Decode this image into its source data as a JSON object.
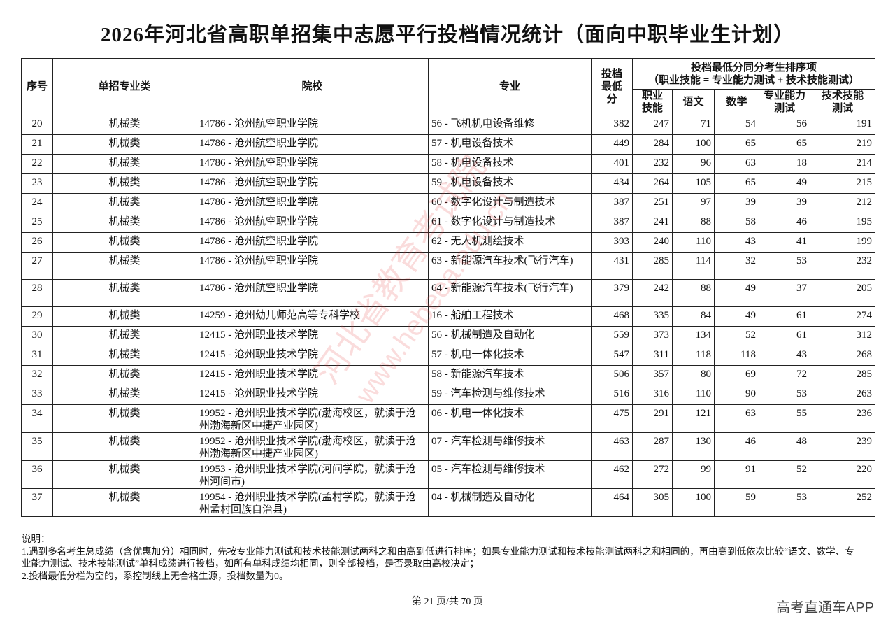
{
  "title": "2026年河北省高职单招集中志愿平行投档情况统计（面向中职毕业生计划）",
  "table": {
    "headers": {
      "seq": "序号",
      "category": "单招专业类",
      "school": "院校",
      "major": "专业",
      "min_score": "投档最低分",
      "tiebreak_group": "投档最低分同分考生排序项",
      "tiebreak_formula": "（职业技能 = 专业能力测试 + 技术技能测试）",
      "vocational": "职业技能",
      "chinese": "语文",
      "math": "数学",
      "professional": "专业能力测试",
      "technical": "技术技能测试"
    },
    "rows": [
      {
        "seq": "20",
        "category": "机械类",
        "school": "14786 - 沧州航空职业学院",
        "major": "56 - 飞机机电设备维修",
        "min": "382",
        "voc": "247",
        "chi": "71",
        "math": "54",
        "pro": "56",
        "tech": "191"
      },
      {
        "seq": "21",
        "category": "机械类",
        "school": "14786 - 沧州航空职业学院",
        "major": "57 - 机电设备技术",
        "min": "449",
        "voc": "284",
        "chi": "100",
        "math": "65",
        "pro": "65",
        "tech": "219"
      },
      {
        "seq": "22",
        "category": "机械类",
        "school": "14786 - 沧州航空职业学院",
        "major": "58 - 机电设备技术",
        "min": "401",
        "voc": "232",
        "chi": "96",
        "math": "63",
        "pro": "18",
        "tech": "214"
      },
      {
        "seq": "23",
        "category": "机械类",
        "school": "14786 - 沧州航空职业学院",
        "major": "59 - 机电设备技术",
        "min": "434",
        "voc": "264",
        "chi": "105",
        "math": "65",
        "pro": "49",
        "tech": "215"
      },
      {
        "seq": "24",
        "category": "机械类",
        "school": "14786 - 沧州航空职业学院",
        "major": "60 - 数字化设计与制造技术",
        "min": "387",
        "voc": "251",
        "chi": "97",
        "math": "39",
        "pro": "39",
        "tech": "212"
      },
      {
        "seq": "25",
        "category": "机械类",
        "school": "14786 - 沧州航空职业学院",
        "major": "61 - 数字化设计与制造技术",
        "min": "387",
        "voc": "241",
        "chi": "88",
        "math": "58",
        "pro": "46",
        "tech": "195"
      },
      {
        "seq": "26",
        "category": "机械类",
        "school": "14786 - 沧州航空职业学院",
        "major": "62 - 无人机测绘技术",
        "min": "393",
        "voc": "240",
        "chi": "110",
        "math": "43",
        "pro": "41",
        "tech": "199"
      },
      {
        "seq": "27",
        "category": "机械类",
        "school": "14786 - 沧州航空职业学院",
        "major": "63 - 新能源汽车技术(飞行汽车)",
        "min": "431",
        "voc": "285",
        "chi": "114",
        "math": "32",
        "pro": "53",
        "tech": "232"
      },
      {
        "seq": "28",
        "category": "机械类",
        "school": "14786 - 沧州航空职业学院",
        "major": "64 - 新能源汽车技术(飞行汽车)",
        "min": "379",
        "voc": "242",
        "chi": "88",
        "math": "49",
        "pro": "37",
        "tech": "205"
      },
      {
        "seq": "29",
        "category": "机械类",
        "school": "14259 - 沧州幼儿师范高等专科学校",
        "major": "16 - 船舶工程技术",
        "min": "468",
        "voc": "335",
        "chi": "84",
        "math": "49",
        "pro": "61",
        "tech": "274"
      },
      {
        "seq": "30",
        "category": "机械类",
        "school": "12415 - 沧州职业技术学院",
        "major": "56 - 机械制造及自动化",
        "min": "559",
        "voc": "373",
        "chi": "134",
        "math": "52",
        "pro": "61",
        "tech": "312"
      },
      {
        "seq": "31",
        "category": "机械类",
        "school": "12415 - 沧州职业技术学院",
        "major": "57 - 机电一体化技术",
        "min": "547",
        "voc": "311",
        "chi": "118",
        "math": "118",
        "pro": "43",
        "tech": "268"
      },
      {
        "seq": "32",
        "category": "机械类",
        "school": "12415 - 沧州职业技术学院",
        "major": "58 - 新能源汽车技术",
        "min": "506",
        "voc": "357",
        "chi": "80",
        "math": "69",
        "pro": "72",
        "tech": "285"
      },
      {
        "seq": "33",
        "category": "机械类",
        "school": "12415 - 沧州职业技术学院",
        "major": "59 - 汽车检测与维修技术",
        "min": "516",
        "voc": "316",
        "chi": "110",
        "math": "90",
        "pro": "53",
        "tech": "263"
      },
      {
        "seq": "34",
        "category": "机械类",
        "school": "19952 - 沧州职业技术学院(渤海校区，就读于沧州渤海新区中捷产业园区)",
        "major": "06 - 机电一体化技术",
        "min": "475",
        "voc": "291",
        "chi": "121",
        "math": "63",
        "pro": "55",
        "tech": "236"
      },
      {
        "seq": "35",
        "category": "机械类",
        "school": "19952 - 沧州职业技术学院(渤海校区，就读于沧州渤海新区中捷产业园区)",
        "major": "07 - 汽车检测与维修技术",
        "min": "463",
        "voc": "287",
        "chi": "130",
        "math": "46",
        "pro": "48",
        "tech": "239"
      },
      {
        "seq": "36",
        "category": "机械类",
        "school": "19953 - 沧州职业技术学院(河间学院，就读于沧州河间市)",
        "major": "05 - 汽车检测与维修技术",
        "min": "462",
        "voc": "272",
        "chi": "99",
        "math": "91",
        "pro": "52",
        "tech": "220"
      },
      {
        "seq": "37",
        "category": "机械类",
        "school": "19954 - 沧州职业技术学院(孟村学院，就读于沧州孟村回族自治县)",
        "major": "04 - 机械制造及自动化",
        "min": "464",
        "voc": "305",
        "chi": "100",
        "math": "59",
        "pro": "53",
        "tech": "252"
      }
    ]
  },
  "notes": {
    "heading": "说明：",
    "item1": "1.遇到多名考生总成绩（含优惠加分）相同时，先按专业能力测试和技术技能测试两科之和由高到低进行排序；如果专业能力测试和技术技能测试两科之和相同的，再由高到低依次比较“语文、数学、专业能力测试、技术技能测试”单科成绩进行投档，如所有单科成绩均相同，则全部投档，是否录取由高校决定；",
    "item2": "2.投档最低分栏为空的，系控制线上无合格生源，投档数量为0。"
  },
  "footer": {
    "page": "第 21 页/共 70 页",
    "brand": "高考直通车APP"
  },
  "watermark": {
    "line1": "河北省教育考试院",
    "line2": "www.hebeea.edu.cn"
  }
}
